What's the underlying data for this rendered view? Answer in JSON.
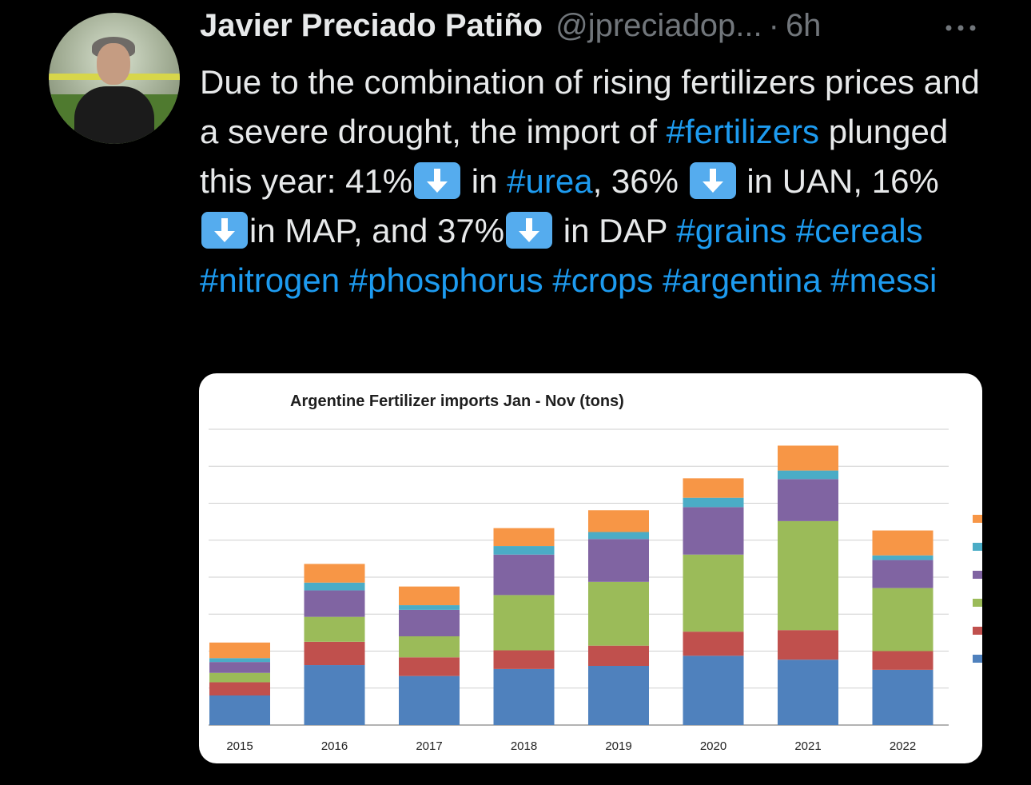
{
  "author": {
    "name": "Javier Preciado Patiño",
    "handle": "@jpreciadop...",
    "separator": "·",
    "time": "6h"
  },
  "more_icon": "more-horizontal-icon",
  "tweet": {
    "p1": "Due to the combination of rising fertilizers prices and a severe drought, the import of ",
    "tag_fertilizers": "#fertilizers",
    "p2": " plunged this year: 41%",
    "p3": " in ",
    "tag_urea": "#urea",
    "p4": ", 36% ",
    "p5": " in UAN, 16% ",
    "p6": "in MAP, and 37%",
    "p7": " in DAP ",
    "tag_grains": "#grains",
    "tag_cereals": "#cereals",
    "tag_nitrogen": "#nitrogen",
    "tag_phosphorus": "#phosphorus",
    "tag_crops": "#crops",
    "tag_argentina": "#argentina",
    "tag_messi": "#messi",
    "arrow_icon": "down-arrow-emoji-icon"
  },
  "chart_data": {
    "type": "bar",
    "stacked": true,
    "title": "Argentine Fertilizer imports Jan - Nov  (tons)",
    "categories": [
      "2015",
      "2016",
      "2017",
      "2018",
      "2019",
      "2020",
      "2021",
      "2022"
    ],
    "series": [
      {
        "color": "#4f81bd",
        "values": [
          38,
          77,
          63,
          72,
          76,
          89,
          84,
          71
        ]
      },
      {
        "color": "#c0504d",
        "values": [
          17,
          30,
          24,
          24,
          26,
          31,
          38,
          24
        ]
      },
      {
        "color": "#9bbb59",
        "values": [
          12,
          32,
          27,
          71,
          82,
          99,
          140,
          81
        ]
      },
      {
        "color": "#8064a2",
        "values": [
          14,
          34,
          34,
          52,
          55,
          61,
          54,
          36
        ]
      },
      {
        "color": "#4bacc6",
        "values": [
          5,
          10,
          6,
          11,
          9,
          12,
          11,
          6
        ]
      },
      {
        "color": "#f79646",
        "values": [
          20,
          24,
          24,
          23,
          28,
          25,
          32,
          32
        ]
      }
    ],
    "ylim": [
      0,
      380
    ],
    "grid": true,
    "legend": "right (labels cropped)"
  }
}
